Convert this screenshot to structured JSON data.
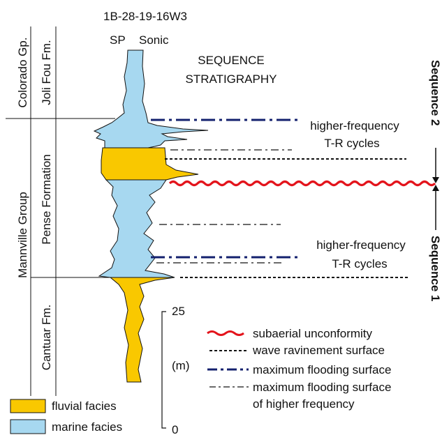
{
  "well_id": "1B-28-19-16W3",
  "log_labels": {
    "sp": "SP",
    "sonic": "Sonic"
  },
  "stratigraphy": {
    "groups": [
      {
        "id": "colorado",
        "label": "Colorado Gp."
      },
      {
        "id": "mannville",
        "label": "Mannville Group"
      }
    ],
    "formations": [
      {
        "id": "joli-fou",
        "label": "Joli Fou Fm."
      },
      {
        "id": "pense",
        "label": "Pense Formation"
      },
      {
        "id": "cantuar",
        "label": "Cantuar Fm."
      }
    ]
  },
  "header": {
    "line1": "SEQUENCE",
    "line2": "STRATIGRAPHY"
  },
  "cycle_labels": {
    "upper": {
      "line1": "higher-frequency",
      "line2": "T-R cycles"
    },
    "lower": {
      "line1": "higher-frequency",
      "line2": "T-R cycles"
    }
  },
  "sequences": {
    "upper": "Sequence 2",
    "lower": "Sequence 1"
  },
  "scale": {
    "top": "25",
    "bottom": "0",
    "unit": "(m)"
  },
  "legend_lines": {
    "unconformity": "subaerial unconformity",
    "ravinement": "wave ravinement surface",
    "mfs": "maximum flooding surface",
    "mfs_hf_line1": "maximum flooding surface",
    "mfs_hf_line2": "of higher frequency"
  },
  "legend_facies": {
    "fluvial": "fluvial facies",
    "marine": "marine facies"
  },
  "colors": {
    "fluvial": "#F9C800",
    "marine": "#A7D8F0",
    "unconformity": "#E3131B",
    "mfs": "#13206E",
    "line": "#111111"
  }
}
